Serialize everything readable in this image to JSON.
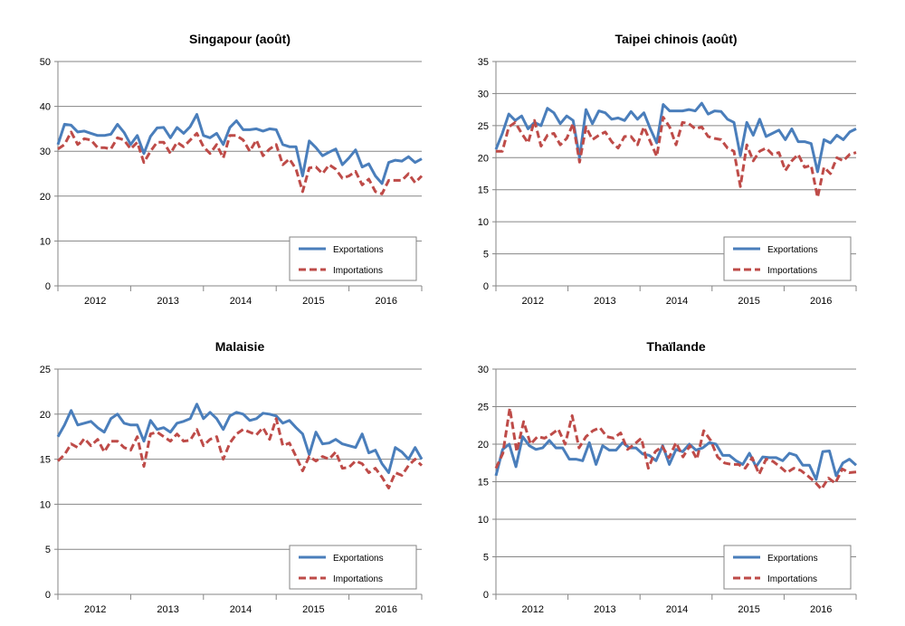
{
  "colors": {
    "exports": "#4a7ebb",
    "imports": "#be4b48",
    "grid": "#868686",
    "axis": "#868686"
  },
  "chart_data": [
    {
      "type": "line",
      "title": "Singapour (août)",
      "ylim": [
        0,
        50
      ],
      "yticks": [
        0,
        10,
        20,
        30,
        40,
        50
      ],
      "xlim": [
        2011.5,
        2016.5
      ],
      "year_labels": [
        "2012",
        "2013",
        "2014",
        "2015",
        "2016"
      ],
      "grid": "horizontal",
      "legend": "bottom-right",
      "series": [
        {
          "name": "Exportations",
          "style": "solid",
          "values": [
            31.5,
            36,
            35.8,
            34.3,
            34.5,
            34,
            33.5,
            33.5,
            33.8,
            36,
            34.2,
            31.5,
            33.5,
            29.5,
            33.3,
            35.2,
            35.3,
            33,
            35.3,
            34,
            35.5,
            38.2,
            33.5,
            33,
            34,
            31.5,
            35.3,
            36.8,
            34.8,
            34.8,
            35,
            34.5,
            35,
            34.8,
            31.5,
            31,
            31,
            24.5,
            32.3,
            30.8,
            29,
            29.8,
            30.5,
            27,
            28.5,
            30.3,
            26.5,
            27.2,
            24.5,
            22.8,
            27.5,
            28,
            27.8,
            28.8,
            27.5,
            28.3
          ]
        },
        {
          "name": "Importations",
          "style": "dashed",
          "values": [
            30.5,
            31.5,
            34.3,
            31.5,
            32.8,
            32.5,
            30.8,
            30.8,
            30.5,
            33,
            32.5,
            30.5,
            32,
            27.5,
            30,
            32,
            32,
            29.5,
            32,
            31,
            32.5,
            34,
            31,
            29.5,
            31.5,
            28.5,
            33.5,
            33.5,
            32.5,
            30,
            32.5,
            29,
            30.5,
            31.5,
            27,
            28.3,
            26,
            21,
            26.3,
            26.5,
            25,
            27,
            26,
            24,
            24.5,
            25.5,
            22.5,
            23.8,
            21,
            20.5,
            23.5,
            23.5,
            23.5,
            25,
            23,
            24.5
          ]
        }
      ]
    },
    {
      "type": "line",
      "title": "Taipei chinois (août)",
      "ylim": [
        0,
        35
      ],
      "yticks": [
        0,
        5,
        10,
        15,
        20,
        25,
        30,
        35
      ],
      "xlim": [
        2011.5,
        2016.5
      ],
      "year_labels": [
        "2012",
        "2013",
        "2014",
        "2015",
        "2016"
      ],
      "grid": "horizontal",
      "legend": "bottom-right",
      "series": [
        {
          "name": "Exportations",
          "style": "solid",
          "values": [
            21.3,
            23.8,
            26.8,
            25.8,
            26.5,
            24.5,
            25.5,
            25,
            27.7,
            27,
            25.3,
            26.5,
            25.8,
            20,
            27.5,
            25.3,
            27.3,
            27,
            26,
            26.2,
            25.8,
            27.2,
            26,
            27,
            24.5,
            22.3,
            28.3,
            27.3,
            27.3,
            27.3,
            27.5,
            27.3,
            28.5,
            26.8,
            27.3,
            27.2,
            26,
            25.5,
            20.3,
            25.5,
            23.5,
            26,
            23.3,
            23.8,
            24.3,
            22.8,
            24.5,
            22.5,
            22.5,
            22.2,
            17.8,
            22.8,
            22.3,
            23.5,
            22.8,
            24,
            24.5
          ]
        },
        {
          "name": "Importations",
          "style": "dashed",
          "values": [
            21,
            21,
            24.8,
            25.5,
            23.8,
            22.3,
            25.8,
            21.8,
            23.5,
            23.8,
            22,
            23,
            25.3,
            19.3,
            24.8,
            22.8,
            23.5,
            24,
            22.5,
            21.5,
            23.3,
            23.3,
            22,
            24.8,
            22.5,
            20.2,
            26.3,
            24.8,
            22,
            25.5,
            25.3,
            24.5,
            24.8,
            23.3,
            23,
            22.8,
            21.5,
            21,
            15.5,
            22,
            19.5,
            21,
            21.5,
            20.5,
            20.8,
            18,
            19.5,
            20.5,
            18.5,
            18.8,
            13.8,
            18.5,
            17.5,
            20,
            19.5,
            20.5,
            20.8
          ]
        }
      ]
    },
    {
      "type": "line",
      "title": "Malaisie",
      "ylim": [
        0,
        25
      ],
      "yticks": [
        0,
        5,
        10,
        15,
        20,
        25
      ],
      "xlim": [
        2011.5,
        2016.5
      ],
      "year_labels": [
        "2012",
        "2013",
        "2014",
        "2015",
        "2016"
      ],
      "grid": "horizontal",
      "legend": "bottom-right",
      "series": [
        {
          "name": "Exportations",
          "style": "solid",
          "values": [
            17.5,
            18.8,
            20.4,
            18.8,
            19,
            19.2,
            18.5,
            18,
            19.5,
            20,
            19,
            18.8,
            18.8,
            17,
            19.3,
            18.3,
            18.5,
            18,
            19,
            19.2,
            19.5,
            21.1,
            19.5,
            20.2,
            19.5,
            18.3,
            19.8,
            20.2,
            20,
            19.3,
            19.5,
            20.1,
            20,
            19.8,
            19,
            19.3,
            18.5,
            17.8,
            15.5,
            18,
            16.7,
            16.8,
            17.2,
            16.7,
            16.5,
            16.3,
            17.8,
            15.7,
            16,
            14.5,
            13.5,
            16.3,
            15.8,
            15,
            16.3,
            15
          ]
        },
        {
          "name": "Importations",
          "style": "dashed",
          "values": [
            14.8,
            15.5,
            16.7,
            16.3,
            17.3,
            16.5,
            17.2,
            15.8,
            17,
            17,
            16.3,
            16,
            17.5,
            14.2,
            17.8,
            18,
            17.5,
            17,
            17.8,
            17,
            17.1,
            18.3,
            16.5,
            17.2,
            17.5,
            15,
            16.8,
            17.8,
            18.3,
            18,
            17.7,
            18.5,
            17.2,
            19.5,
            16.5,
            16.8,
            15.3,
            13.7,
            15.3,
            14.8,
            15.3,
            15,
            15.8,
            14,
            14.1,
            14.8,
            14.5,
            13.5,
            14,
            13,
            11.8,
            13.5,
            13.2,
            14.3,
            15,
            14.3
          ]
        }
      ]
    },
    {
      "type": "line",
      "title": "Thaïlande",
      "ylim": [
        0,
        30
      ],
      "yticks": [
        0,
        5,
        10,
        15,
        20,
        25,
        30
      ],
      "xlim": [
        2011.5,
        2016.5
      ],
      "year_labels": [
        "2012",
        "2013",
        "2014",
        "2015",
        "2016"
      ],
      "grid": "horizontal",
      "legend": "bottom-right",
      "series": [
        {
          "name": "Exportations",
          "style": "solid",
          "values": [
            15.8,
            19.3,
            20,
            17,
            21,
            19.8,
            19.3,
            19.5,
            20.5,
            19.5,
            19.5,
            18,
            18,
            17.8,
            20.2,
            17.3,
            19.8,
            19.2,
            19.2,
            20.2,
            19.5,
            19.5,
            18.7,
            18.5,
            17.8,
            19.8,
            17.3,
            19.3,
            19,
            20,
            19.2,
            19.5,
            20.2,
            20,
            18.5,
            18.5,
            17.8,
            17.3,
            18.8,
            17,
            18.3,
            18.2,
            18.2,
            17.8,
            18.8,
            18.5,
            17.2,
            17.2,
            15.3,
            19,
            19.1,
            15.8,
            17.5,
            18,
            17.2
          ]
        },
        {
          "name": "Importations",
          "style": "dashed",
          "values": [
            16.8,
            18.8,
            24.8,
            19,
            23,
            20,
            21,
            20.8,
            21.3,
            22,
            20,
            23.8,
            19.5,
            21,
            21.8,
            22.2,
            21,
            20.8,
            21.5,
            19.3,
            20,
            20.8,
            16.8,
            19,
            19.7,
            18.2,
            20.2,
            18.3,
            19.8,
            18,
            21.8,
            20.5,
            18.3,
            17.5,
            17.3,
            17.3,
            16.8,
            18.2,
            16,
            18,
            17.7,
            17,
            16.2,
            16.8,
            16.5,
            15.8,
            15,
            14,
            15.5,
            14.8,
            16.7,
            16.2,
            16.3
          ]
        }
      ]
    }
  ]
}
